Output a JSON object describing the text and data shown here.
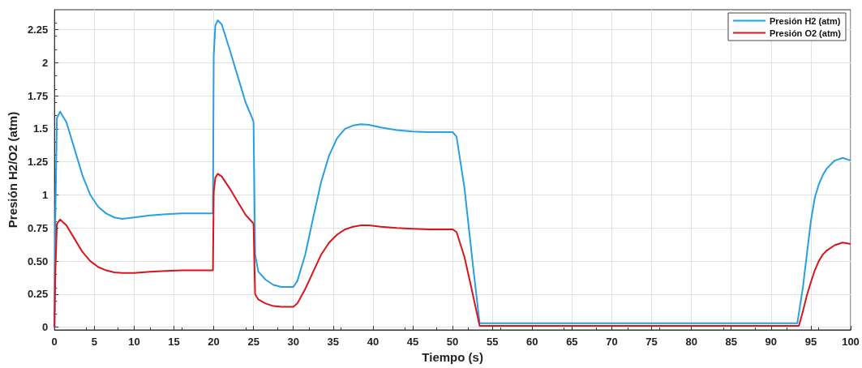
{
  "chart_data": {
    "type": "line",
    "xlabel": "Tiempo (s)",
    "ylabel": "Presión H2/O2 (atm)",
    "xlim": [
      0,
      100
    ],
    "xticks": [
      0,
      5,
      10,
      15,
      20,
      25,
      30,
      35,
      40,
      45,
      50,
      55,
      60,
      65,
      70,
      75,
      80,
      85,
      90,
      95,
      100
    ],
    "ylim": [
      -0.02,
      2.4
    ],
    "yticks": [
      0,
      {
        "value": 0.25,
        "label": "0.25"
      },
      {
        "value": 0.5,
        "label": "0.50"
      },
      0.75,
      1,
      1.25,
      1.5,
      1.75,
      2,
      2.25
    ],
    "grid": true,
    "legend": "top right",
    "line_style": "solid",
    "marker": "none",
    "series": [
      {
        "name": "Presión H2 (atm)",
        "color": "#2a9fdf",
        "x": [
          0,
          0.1,
          0.3,
          0.7,
          1.5,
          2.5,
          3.5,
          4.5,
          5.5,
          6.5,
          7.5,
          8.5,
          10,
          12,
          14,
          16,
          18,
          19.9,
          20,
          20.2,
          20.5,
          21,
          22,
          23,
          24,
          24.9,
          25,
          25.2,
          25.6,
          26.5,
          27.5,
          28.5,
          30,
          30.5,
          31.5,
          32.5,
          33.5,
          34.5,
          35.5,
          36.5,
          37.5,
          38.5,
          39.5,
          41,
          43,
          45,
          47,
          49,
          50,
          50.5,
          51.5,
          52.5,
          53.4,
          60,
          70,
          80,
          90,
          93.3,
          94,
          94.5,
          95,
          95.5,
          96,
          96.5,
          97,
          98,
          99,
          100
        ],
        "values": [
          0,
          0.8,
          1.58,
          1.63,
          1.55,
          1.35,
          1.15,
          1.0,
          0.91,
          0.86,
          0.83,
          0.82,
          0.83,
          0.845,
          0.855,
          0.86,
          0.86,
          0.86,
          2.05,
          2.28,
          2.32,
          2.29,
          2.1,
          1.9,
          1.7,
          1.57,
          1.55,
          0.55,
          0.42,
          0.36,
          0.32,
          0.305,
          0.305,
          0.35,
          0.55,
          0.83,
          1.1,
          1.3,
          1.43,
          1.5,
          1.525,
          1.535,
          1.53,
          1.51,
          1.49,
          1.48,
          1.475,
          1.475,
          1.475,
          1.44,
          1.05,
          0.5,
          0.03,
          0.03,
          0.03,
          0.03,
          0.03,
          0.03,
          0.3,
          0.55,
          0.8,
          0.98,
          1.08,
          1.15,
          1.2,
          1.26,
          1.28,
          1.26
        ]
      },
      {
        "name": "Presión O2 (atm)",
        "color": "#d9141c",
        "x": [
          0,
          0.1,
          0.3,
          0.7,
          1.5,
          2.5,
          3.5,
          4.5,
          5.5,
          6.5,
          7.5,
          8.5,
          10,
          12,
          14,
          16,
          18,
          19.9,
          20,
          20.2,
          20.5,
          21,
          22,
          23,
          24,
          24.9,
          25,
          25.2,
          25.6,
          26.5,
          27.5,
          28.5,
          30,
          30.5,
          31.5,
          32.5,
          33.5,
          34.5,
          35.5,
          36.5,
          37.5,
          38.5,
          39.5,
          41,
          43,
          45,
          47,
          49,
          50,
          50.5,
          51.5,
          52.5,
          53.4,
          60,
          70,
          80,
          90,
          93.5,
          94,
          94.5,
          95,
          95.5,
          96,
          96.5,
          97,
          98,
          99,
          100
        ],
        "values": [
          0,
          0.4,
          0.78,
          0.815,
          0.77,
          0.67,
          0.57,
          0.5,
          0.455,
          0.43,
          0.415,
          0.41,
          0.41,
          0.42,
          0.425,
          0.43,
          0.43,
          0.43,
          1.02,
          1.13,
          1.16,
          1.14,
          1.05,
          0.95,
          0.85,
          0.79,
          0.78,
          0.25,
          0.21,
          0.18,
          0.16,
          0.155,
          0.155,
          0.18,
          0.29,
          0.42,
          0.55,
          0.64,
          0.7,
          0.74,
          0.76,
          0.77,
          0.77,
          0.76,
          0.75,
          0.745,
          0.74,
          0.74,
          0.74,
          0.72,
          0.53,
          0.26,
          0.01,
          0.01,
          0.01,
          0.01,
          0.01,
          0.01,
          0.12,
          0.24,
          0.34,
          0.43,
          0.5,
          0.55,
          0.58,
          0.62,
          0.64,
          0.63
        ]
      }
    ]
  }
}
